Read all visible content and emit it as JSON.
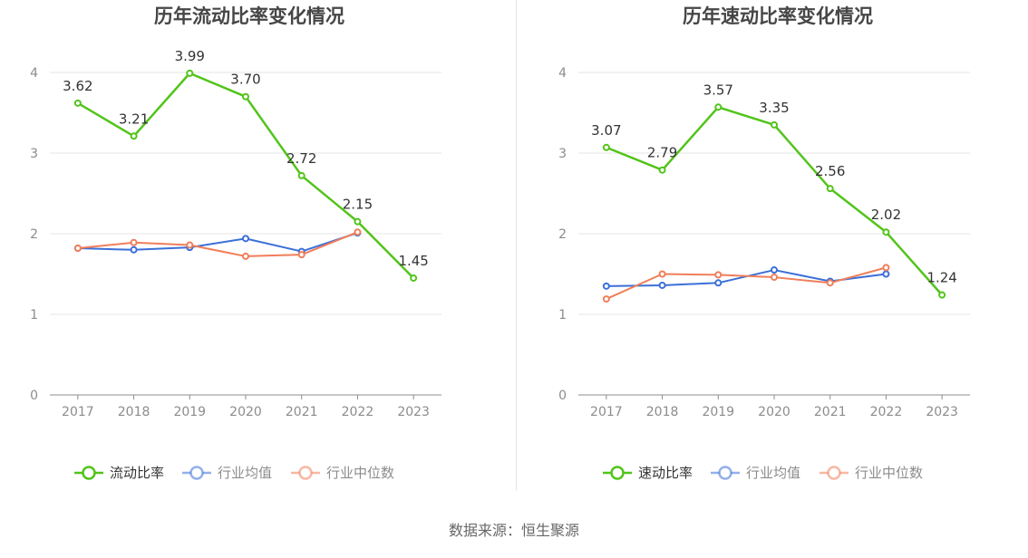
{
  "chart_data": [
    {
      "type": "line",
      "title": "历年流动比率变化情况",
      "categories": [
        "2017",
        "2018",
        "2019",
        "2020",
        "2021",
        "2022",
        "2023"
      ],
      "ylim": [
        0,
        4
      ],
      "yticks": [
        0,
        1,
        2,
        3,
        4
      ],
      "grid": true,
      "legend_position": "bottom",
      "series": [
        {
          "name": "流动比率",
          "color": "#52c41a",
          "labeled": true,
          "values": [
            3.62,
            3.21,
            3.99,
            3.7,
            2.72,
            2.15,
            1.45
          ],
          "labels": [
            "3.62",
            "3.21",
            "3.99",
            "3.70",
            "2.72",
            "2.15",
            "1.45"
          ]
        },
        {
          "name": "行业均值",
          "color": "#3b6fd8",
          "labeled": false,
          "values": [
            1.82,
            1.8,
            1.83,
            1.94,
            1.78,
            2.01,
            null
          ]
        },
        {
          "name": "行业中位数",
          "color": "#f07e5a",
          "labeled": false,
          "values": [
            1.82,
            1.89,
            1.86,
            1.72,
            1.74,
            2.02,
            null
          ]
        }
      ]
    },
    {
      "type": "line",
      "title": "历年速动比率变化情况",
      "categories": [
        "2017",
        "2018",
        "2019",
        "2020",
        "2021",
        "2022",
        "2023"
      ],
      "ylim": [
        0,
        4
      ],
      "yticks": [
        0,
        1,
        2,
        3,
        4
      ],
      "grid": true,
      "legend_position": "bottom",
      "series": [
        {
          "name": "速动比率",
          "color": "#52c41a",
          "labeled": true,
          "values": [
            3.07,
            2.79,
            3.57,
            3.35,
            2.56,
            2.02,
            1.24
          ],
          "labels": [
            "3.07",
            "2.79",
            "3.57",
            "3.35",
            "2.56",
            "2.02",
            "1.24"
          ]
        },
        {
          "name": "行业均值",
          "color": "#3b6fd8",
          "labeled": false,
          "values": [
            1.35,
            1.36,
            1.39,
            1.55,
            1.41,
            1.5,
            null
          ]
        },
        {
          "name": "行业中位数",
          "color": "#f07e5a",
          "labeled": false,
          "values": [
            1.19,
            1.5,
            1.49,
            1.46,
            1.39,
            1.58,
            null
          ]
        }
      ]
    }
  ],
  "footer": {
    "source": "数据来源：恒生聚源"
  }
}
